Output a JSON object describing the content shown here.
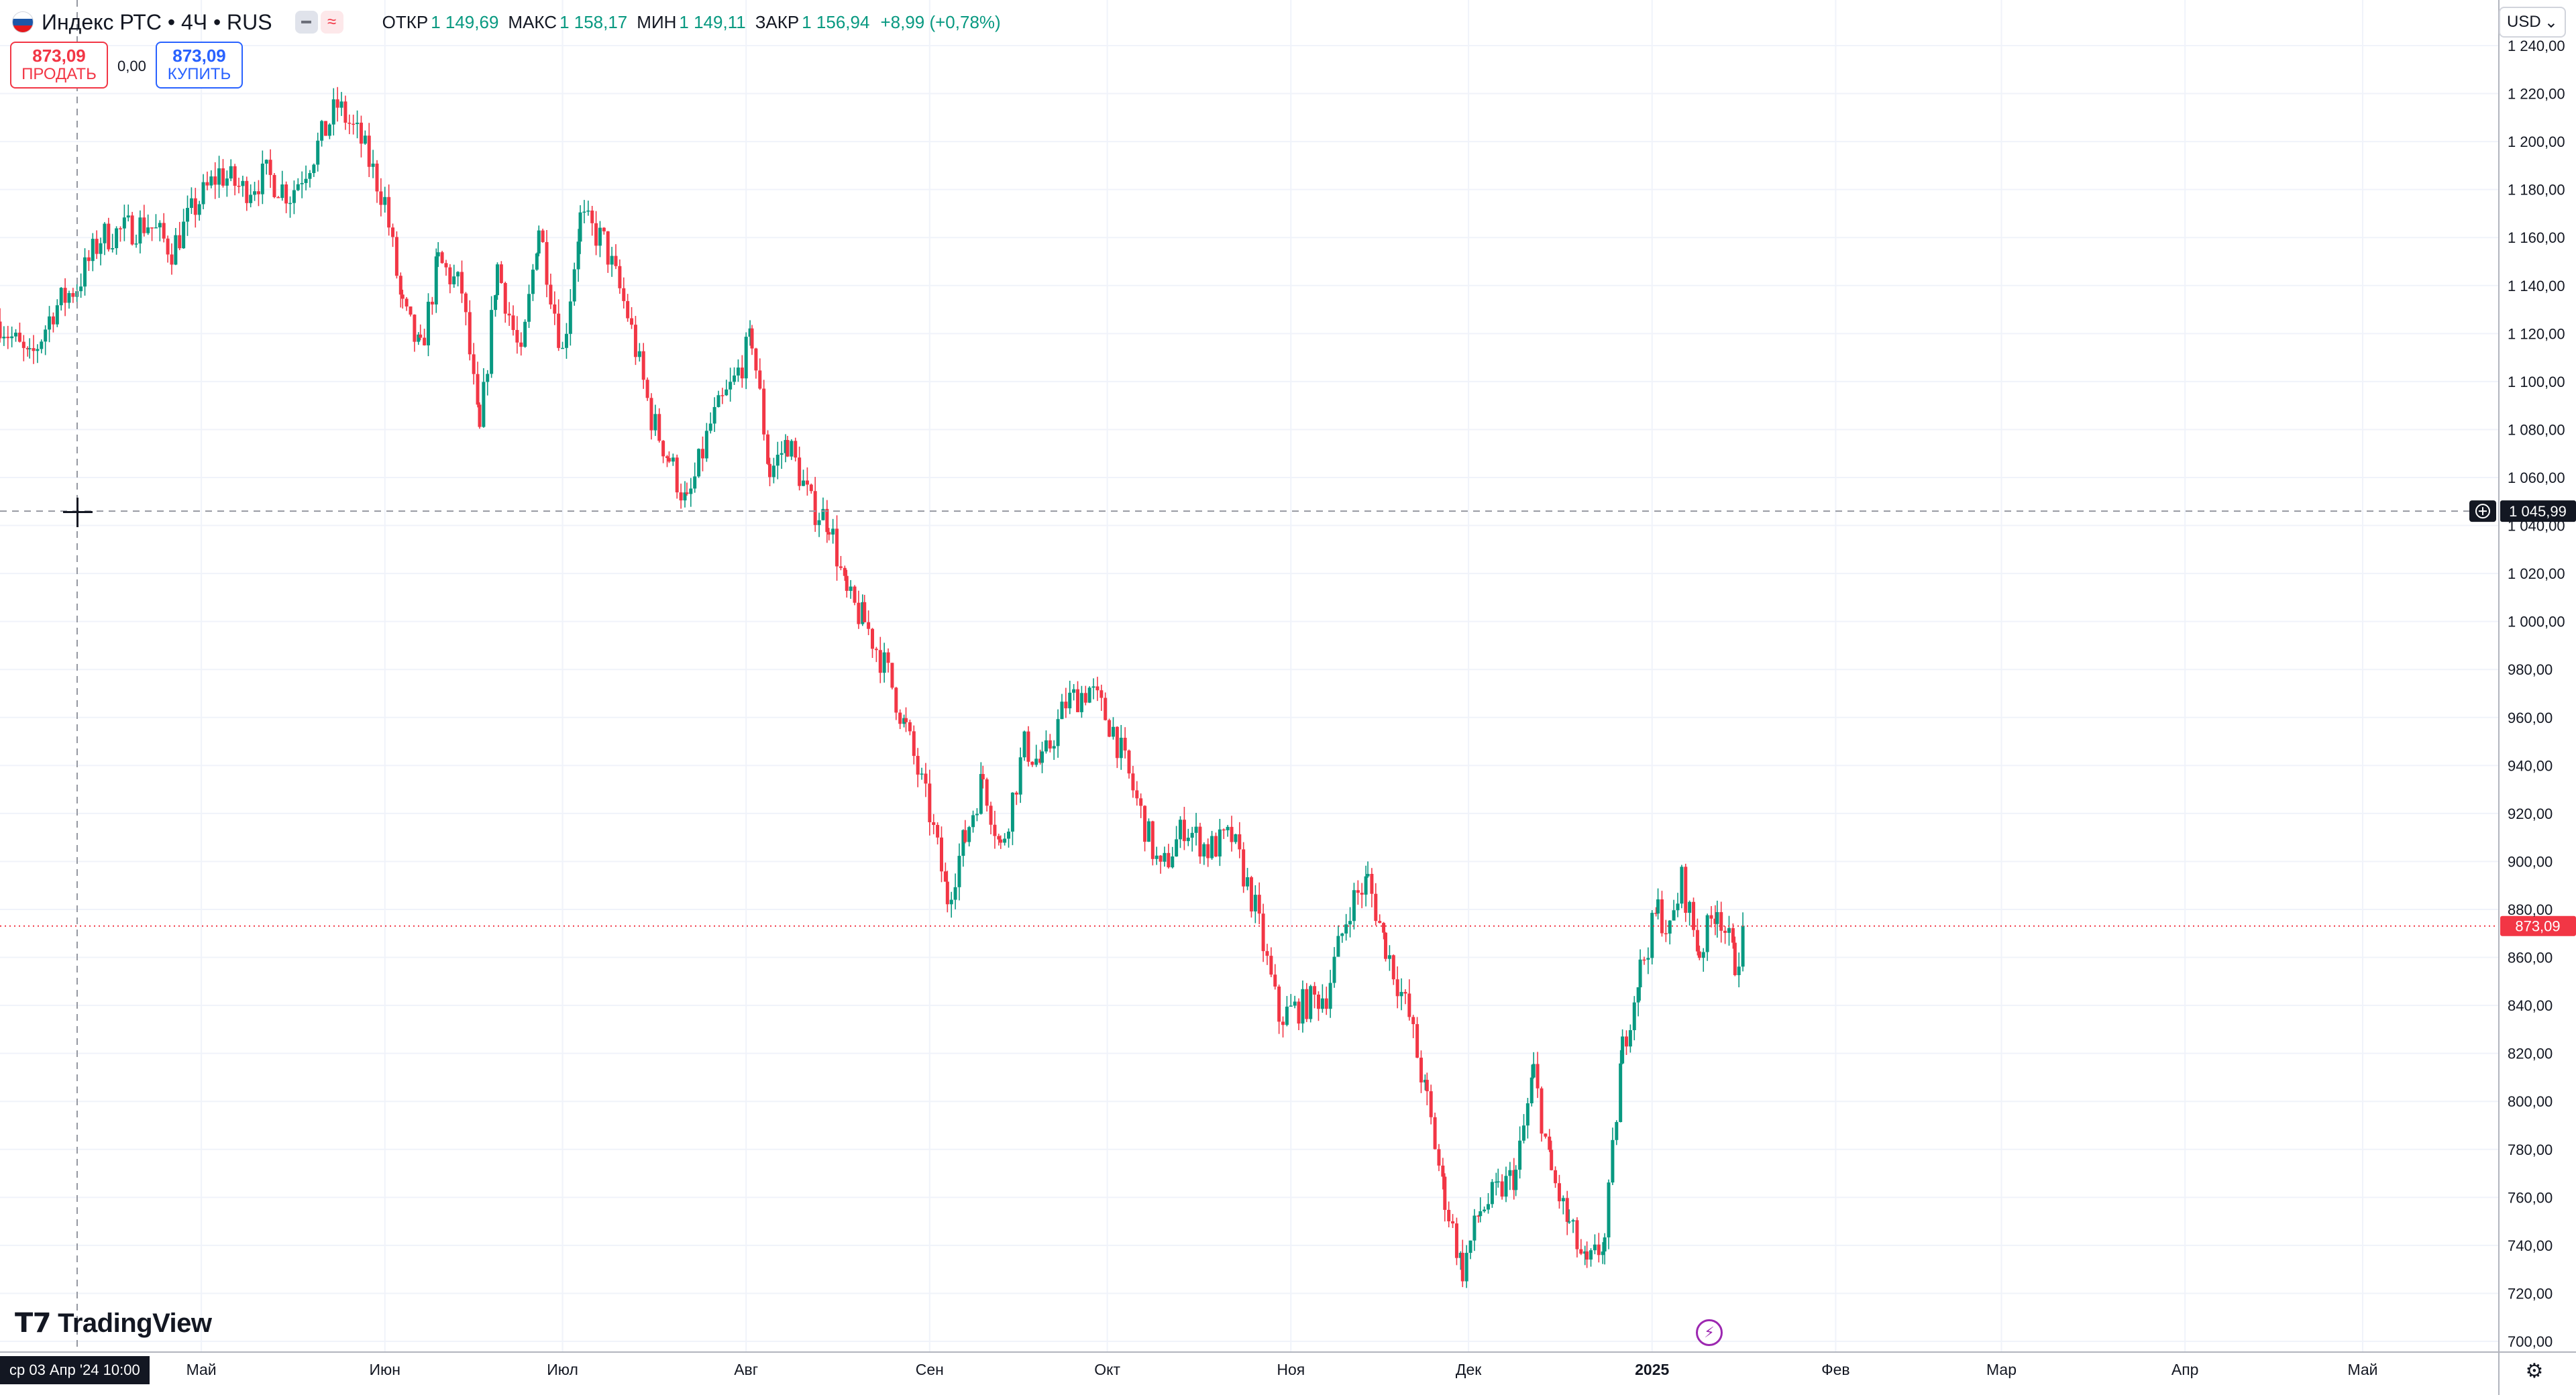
{
  "header": {
    "symbol": "Индекс РТС • 4Ч • RUS",
    "open_label": "ОТКР",
    "open_value": "1 149,69",
    "high_label": "МАКС",
    "high_value": "1 158,17",
    "low_label": "МИН",
    "low_value": "1 149,11",
    "close_label": "ЗАКР",
    "close_value": "1 156,94",
    "change": "+8,99 (+0,78%)",
    "sell_price": "873,09",
    "sell_label": "ПРОДАТЬ",
    "spread": "0,00",
    "buy_price": "873,09",
    "buy_label": "КУПИТЬ",
    "currency": "USD"
  },
  "crosshair": {
    "date_label": "ср 03 Апр '24   10:00",
    "price_label": "1 045,99",
    "price": 1045.99
  },
  "last_price": {
    "label": "873,09",
    "value": 873.09
  },
  "logo_text": "TradingView",
  "colors": {
    "up": "#089981",
    "down": "#f23645",
    "grid": "#f0f3fa",
    "text": "#131722",
    "axis_border": "#b2b5be",
    "last_price": "#f23645"
  },
  "chart_data": {
    "type": "candlestick",
    "timeframe": "4H",
    "ylim": [
      700,
      1240
    ],
    "y_ticks": [
      700,
      720,
      740,
      760,
      780,
      800,
      820,
      840,
      860,
      880,
      900,
      920,
      940,
      960,
      980,
      1000,
      1020,
      1040,
      1060,
      1080,
      1100,
      1120,
      1140,
      1160,
      1180,
      1200,
      1220,
      1240
    ],
    "y_tick_labels": [
      "700,00",
      "720,00",
      "740,00",
      "760,00",
      "780,00",
      "800,00",
      "820,00",
      "840,00",
      "860,00",
      "880,00",
      "900,00",
      "920,00",
      "940,00",
      "960,00",
      "980,00",
      "1 000,00",
      "1 020,00",
      "1 040,00",
      "1 060,00",
      "1 080,00",
      "1 100,00",
      "1 120,00",
      "1 140,00",
      "1 160,00",
      "1 180,00",
      "1 200,00",
      "1 220,00",
      "1 240,00"
    ],
    "x_ticks": [
      {
        "label": "Май",
        "date": "2024-05-01"
      },
      {
        "label": "Июн",
        "date": "2024-06-01"
      },
      {
        "label": "Июл",
        "date": "2024-07-01"
      },
      {
        "label": "Авг",
        "date": "2024-08-01"
      },
      {
        "label": "Сен",
        "date": "2024-09-01"
      },
      {
        "label": "Окт",
        "date": "2024-10-01"
      },
      {
        "label": "Ноя",
        "date": "2024-11-01"
      },
      {
        "label": "Дек",
        "date": "2024-12-01"
      },
      {
        "label": "2025",
        "date": "2025-01-01"
      },
      {
        "label": "Фев",
        "date": "2025-02-01"
      },
      {
        "label": "Мар",
        "date": "2025-03-01"
      },
      {
        "label": "Апр",
        "date": "2025-04-01"
      },
      {
        "label": "Май",
        "date": "2025-05-01"
      }
    ],
    "x_range": [
      "2024-03-28",
      "2025-05-24"
    ],
    "close_path": [
      {
        "date": "2024-03-28",
        "close": 1125
      },
      {
        "date": "2024-04-02",
        "close": 1108
      },
      {
        "date": "2024-04-06",
        "close": 1130
      },
      {
        "date": "2024-04-10",
        "close": 1140
      },
      {
        "date": "2024-04-14",
        "close": 1160
      },
      {
        "date": "2024-04-18",
        "close": 1163
      },
      {
        "date": "2024-04-22",
        "close": 1166
      },
      {
        "date": "2024-04-26",
        "close": 1155
      },
      {
        "date": "2024-04-30",
        "close": 1173
      },
      {
        "date": "2024-05-04",
        "close": 1187
      },
      {
        "date": "2024-05-08",
        "close": 1180
      },
      {
        "date": "2024-05-12",
        "close": 1186
      },
      {
        "date": "2024-05-16",
        "close": 1178
      },
      {
        "date": "2024-05-20",
        "close": 1195
      },
      {
        "date": "2024-05-24",
        "close": 1215
      },
      {
        "date": "2024-05-28",
        "close": 1200
      },
      {
        "date": "2024-06-01",
        "close": 1175
      },
      {
        "date": "2024-06-04",
        "close": 1130
      },
      {
        "date": "2024-06-07",
        "close": 1112
      },
      {
        "date": "2024-06-10",
        "close": 1150
      },
      {
        "date": "2024-06-14",
        "close": 1138
      },
      {
        "date": "2024-06-17",
        "close": 1078
      },
      {
        "date": "2024-06-20",
        "close": 1148
      },
      {
        "date": "2024-06-24",
        "close": 1108
      },
      {
        "date": "2024-06-27",
        "close": 1165
      },
      {
        "date": "2024-07-01",
        "close": 1112
      },
      {
        "date": "2024-07-04",
        "close": 1168
      },
      {
        "date": "2024-07-08",
        "close": 1158
      },
      {
        "date": "2024-07-12",
        "close": 1128
      },
      {
        "date": "2024-07-16",
        "close": 1085
      },
      {
        "date": "2024-07-19",
        "close": 1068
      },
      {
        "date": "2024-07-22",
        "close": 1048
      },
      {
        "date": "2024-07-26",
        "close": 1082
      },
      {
        "date": "2024-07-30",
        "close": 1100
      },
      {
        "date": "2024-08-02",
        "close": 1118
      },
      {
        "date": "2024-08-05",
        "close": 1062
      },
      {
        "date": "2024-08-08",
        "close": 1075
      },
      {
        "date": "2024-08-12",
        "close": 1048
      },
      {
        "date": "2024-08-15",
        "close": 1042
      },
      {
        "date": "2024-08-18",
        "close": 1010
      },
      {
        "date": "2024-08-21",
        "close": 1000
      },
      {
        "date": "2024-08-25",
        "close": 978
      },
      {
        "date": "2024-08-28",
        "close": 955
      },
      {
        "date": "2024-09-01",
        "close": 920
      },
      {
        "date": "2024-09-04",
        "close": 885
      },
      {
        "date": "2024-09-07",
        "close": 910
      },
      {
        "date": "2024-09-10",
        "close": 935
      },
      {
        "date": "2024-09-13",
        "close": 905
      },
      {
        "date": "2024-09-17",
        "close": 948
      },
      {
        "date": "2024-09-20",
        "close": 940
      },
      {
        "date": "2024-09-24",
        "close": 966
      },
      {
        "date": "2024-09-28",
        "close": 972
      },
      {
        "date": "2024-10-02",
        "close": 955
      },
      {
        "date": "2024-10-06",
        "close": 925
      },
      {
        "date": "2024-10-10",
        "close": 895
      },
      {
        "date": "2024-10-14",
        "close": 915
      },
      {
        "date": "2024-10-18",
        "close": 905
      },
      {
        "date": "2024-10-22",
        "close": 910
      },
      {
        "date": "2024-10-26",
        "close": 880
      },
      {
        "date": "2024-10-30",
        "close": 835
      },
      {
        "date": "2024-11-03",
        "close": 840
      },
      {
        "date": "2024-11-07",
        "close": 845
      },
      {
        "date": "2024-11-11",
        "close": 882
      },
      {
        "date": "2024-11-14",
        "close": 892
      },
      {
        "date": "2024-11-17",
        "close": 865
      },
      {
        "date": "2024-11-21",
        "close": 835
      },
      {
        "date": "2024-11-24",
        "close": 800
      },
      {
        "date": "2024-11-27",
        "close": 760
      },
      {
        "date": "2024-11-30",
        "close": 730
      },
      {
        "date": "2024-12-03",
        "close": 755
      },
      {
        "date": "2024-12-06",
        "close": 762
      },
      {
        "date": "2024-12-09",
        "close": 770
      },
      {
        "date": "2024-12-12",
        "close": 812
      },
      {
        "date": "2024-12-15",
        "close": 770
      },
      {
        "date": "2024-12-18",
        "close": 748
      },
      {
        "date": "2024-12-21",
        "close": 730
      },
      {
        "date": "2024-12-24",
        "close": 742
      },
      {
        "date": "2024-12-27",
        "close": 822
      },
      {
        "date": "2024-12-30",
        "close": 855
      },
      {
        "date": "2025-01-02",
        "close": 880
      },
      {
        "date": "2025-01-04",
        "close": 870
      },
      {
        "date": "2025-01-06",
        "close": 892
      },
      {
        "date": "2025-01-09",
        "close": 862
      },
      {
        "date": "2025-01-12",
        "close": 882
      },
      {
        "date": "2025-01-15",
        "close": 858
      },
      {
        "date": "2025-01-17",
        "close": 873.09
      }
    ]
  }
}
